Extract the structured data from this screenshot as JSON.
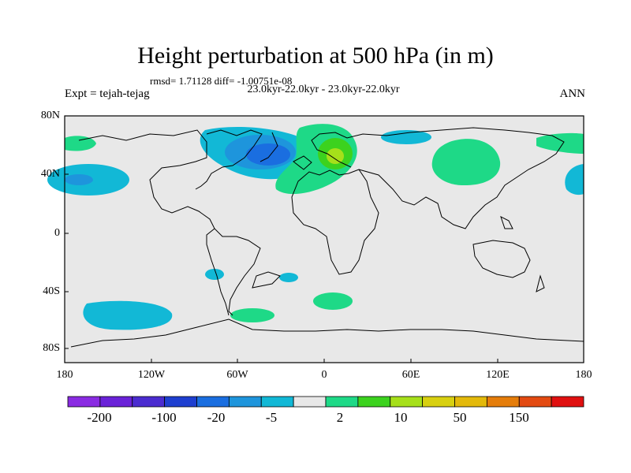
{
  "title": "Height perturbation at 500 hPa (in m)",
  "stats": "rmsd= 1.71128 diff= -1.00751e-08",
  "period": "23.0kyr-22.0kyr - 23.0kyr-22.0kyr",
  "experiment": "Expt = tejah-tejag",
  "season": "ANN",
  "axes": {
    "lat_labels": [
      "80N",
      "40N",
      "0",
      "40S",
      "80S"
    ],
    "lon_labels": [
      "180",
      "120W",
      "60W",
      "0",
      "60E",
      "120E",
      "180"
    ]
  },
  "colorbar": {
    "colors": [
      "#8a2be2",
      "#6a22d8",
      "#4b2cd0",
      "#1e3fd0",
      "#1a6ee0",
      "#1e95dc",
      "#12b8d6",
      "#e8e8e8",
      "#1ed987",
      "#3cd21e",
      "#a6e01a",
      "#d8d010",
      "#e3b90a",
      "#e57d0a",
      "#e34a12",
      "#e01010"
    ],
    "labels": [
      "-200",
      "-100",
      "-20",
      "-5",
      "2",
      "10",
      "50",
      "150"
    ]
  },
  "legend_colors": {
    "light_blue": "#12b8d6",
    "mid_blue": "#1e95dc",
    "dark_blue": "#1a6ee0",
    "green": "#1ed987",
    "bright_green": "#3cd21e",
    "yellow_green": "#a6e01a",
    "neutral": "#e8e8e8"
  }
}
